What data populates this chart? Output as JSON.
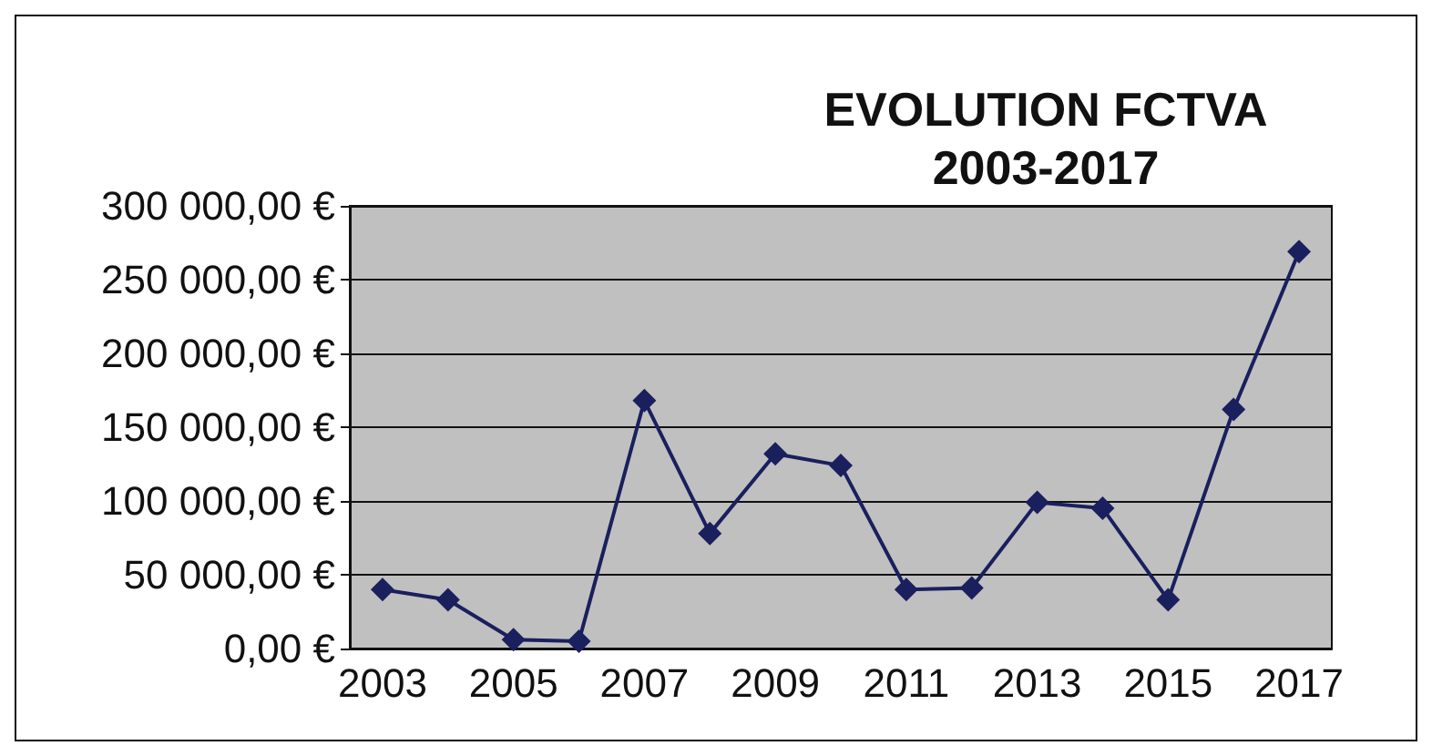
{
  "chart_data": {
    "type": "line",
    "title": "EVOLUTION FCTVA\n2003-2017",
    "categories": [
      "2003",
      null,
      "2005",
      null,
      "2007",
      null,
      "2009",
      null,
      "2011",
      null,
      "2013",
      null,
      "2015",
      null,
      "2017"
    ],
    "series": [
      {
        "color": "#1a1f5e",
        "values": [
          40000,
          33000,
          6000,
          5000,
          168000,
          78000,
          132000,
          124000,
          40000,
          41000,
          99000,
          95000,
          33000,
          162000,
          269000
        ]
      }
    ],
    "ylim": [
      0,
      300000
    ],
    "yticks": [
      {
        "value": 0,
        "label": "0,00 €"
      },
      {
        "value": 50000,
        "label": "50 000,00 €"
      },
      {
        "value": 100000,
        "label": "100 000,00 €"
      },
      {
        "value": 150000,
        "label": "150 000,00 €"
      },
      {
        "value": 200000,
        "label": "200 000,00 €"
      },
      {
        "value": 250000,
        "label": "250 000,00 €"
      },
      {
        "value": 300000,
        "label": "300 000,00 €"
      }
    ],
    "grid": "y",
    "marker": "diamond",
    "line_style": "solid"
  }
}
